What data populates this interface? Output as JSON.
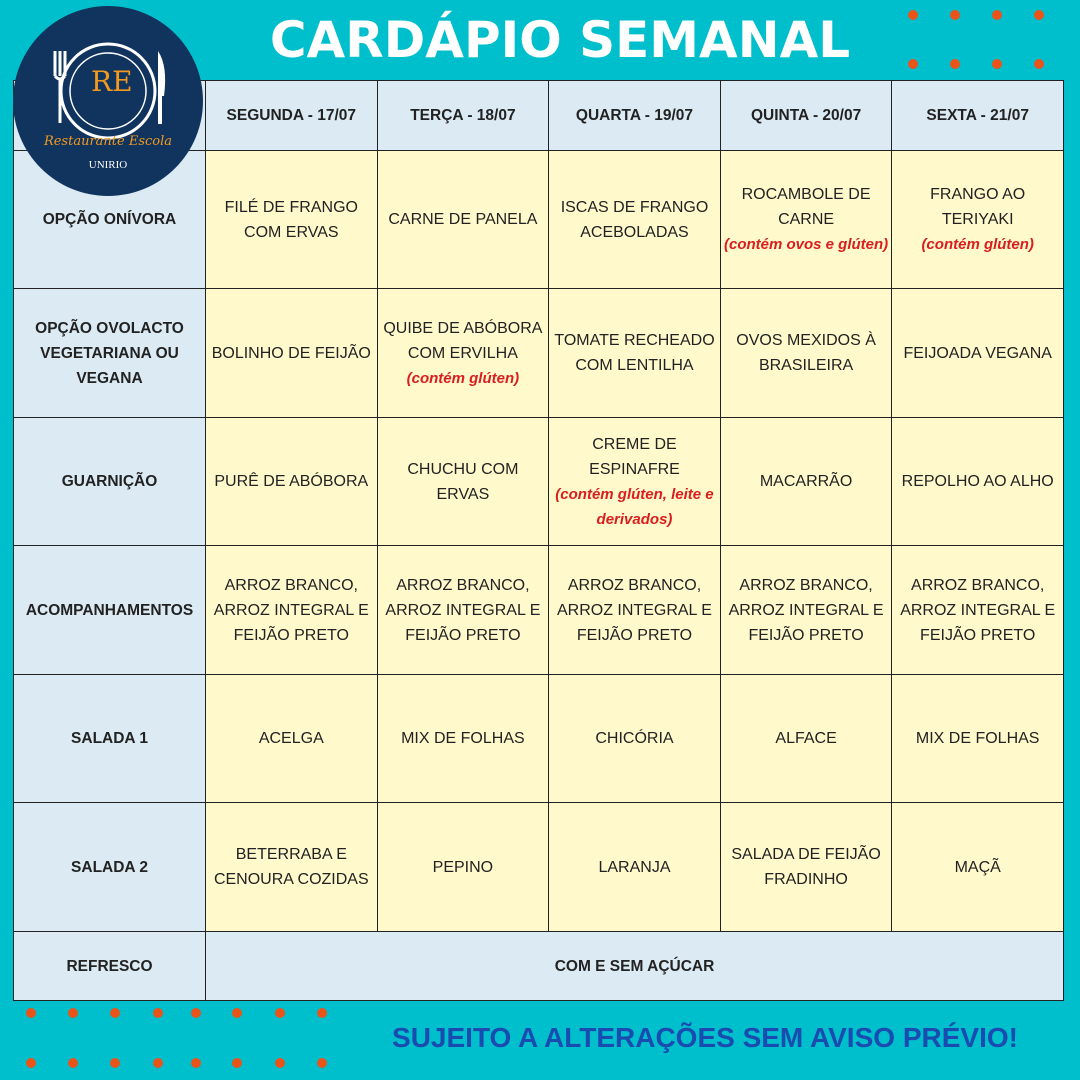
{
  "title": "CARDÁPIO SEMANAL",
  "logo": {
    "initials": "RE",
    "name": "Restaurante Escola",
    "org": "UNIRIO"
  },
  "days": [
    "SEGUNDA - 17/07",
    "TERÇA - 18/07",
    "QUARTA - 19/07",
    "QUINTA - 20/07",
    "SEXTA - 21/07"
  ],
  "rows": [
    {
      "label": "OPÇÃO ONÍVORA",
      "cells": [
        {
          "text": "FILÉ DE FRANGO COM ERVAS"
        },
        {
          "text": "CARNE DE PANELA"
        },
        {
          "text": "ISCAS DE FRANGO ACEBOLADAS"
        },
        {
          "text": "ROCAMBOLE DE CARNE",
          "note": "(contém ovos e glúten)"
        },
        {
          "text": "FRANGO AO TERIYAKI",
          "note": "(contém glúten)"
        }
      ]
    },
    {
      "label": "OPÇÃO OVOLACTO VEGETARIANA OU VEGANA",
      "cells": [
        {
          "text": "BOLINHO DE FEIJÃO"
        },
        {
          "text": "QUIBE DE ABÓBORA COM ERVILHA",
          "note": "(contém glúten)"
        },
        {
          "text": "TOMATE RECHEADO COM LENTILHA"
        },
        {
          "text": "OVOS MEXIDOS À BRASILEIRA"
        },
        {
          "text": "FEIJOADA VEGANA"
        }
      ]
    },
    {
      "label": "GUARNIÇÃO",
      "cells": [
        {
          "text": "PURÊ DE ABÓBORA"
        },
        {
          "text": "CHUCHU COM ERVAS"
        },
        {
          "text": "CREME DE ESPINAFRE",
          "note": "(contém glúten, leite e derivados)"
        },
        {
          "text": "MACARRÃO"
        },
        {
          "text": "REPOLHO AO ALHO"
        }
      ]
    },
    {
      "label": "ACOMPANHAMENTOS",
      "cells": [
        {
          "text": "ARROZ BRANCO, ARROZ INTEGRAL E FEIJÃO PRETO"
        },
        {
          "text": "ARROZ BRANCO, ARROZ INTEGRAL E FEIJÃO PRETO"
        },
        {
          "text": "ARROZ BRANCO, ARROZ INTEGRAL E FEIJÃO PRETO"
        },
        {
          "text": "ARROZ BRANCO, ARROZ INTEGRAL E FEIJÃO PRETO"
        },
        {
          "text": "ARROZ BRANCO, ARROZ INTEGRAL E FEIJÃO PRETO"
        }
      ]
    },
    {
      "label": "SALADA 1",
      "cells": [
        {
          "text": "ACELGA"
        },
        {
          "text": "MIX DE FOLHAS"
        },
        {
          "text": "CHICÓRIA"
        },
        {
          "text": "ALFACE"
        },
        {
          "text": "MIX DE FOLHAS"
        }
      ]
    },
    {
      "label": "SALADA 2",
      "cells": [
        {
          "text": "BETERRABA E CENOURA COZIDAS"
        },
        {
          "text": "PEPINO"
        },
        {
          "text": "LARANJA"
        },
        {
          "text": "SALADA DE FEIJÃO FRADINHO"
        },
        {
          "text": "MAÇÃ"
        }
      ]
    }
  ],
  "refresco": {
    "label": "REFRESCO",
    "value": "COM E SEM AÇÚCAR"
  },
  "footer": "SUJEITO A ALTERAÇÕES SEM AVISO PRÉVIO!",
  "colors": {
    "background": "#00bfcc",
    "cell": "#fff9cc",
    "header": "#dbeaf3",
    "note": "#d81e1e",
    "dots": "#e8541a",
    "footer": "#1a4bb0",
    "logo": "#10345e"
  }
}
